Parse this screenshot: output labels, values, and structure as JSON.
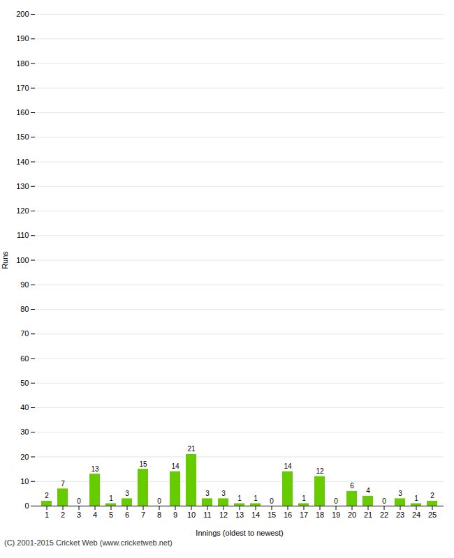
{
  "chart_data": {
    "type": "bar",
    "xlabel": "Innings (oldest to newest)",
    "ylabel": "Runs",
    "caption": "(C) 2001-2015 Cricket Web (www.cricketweb.net)",
    "categories": [
      "1",
      "2",
      "3",
      "4",
      "5",
      "6",
      "7",
      "8",
      "9",
      "10",
      "11",
      "12",
      "13",
      "14",
      "15",
      "16",
      "17",
      "18",
      "19",
      "20",
      "21",
      "22",
      "23",
      "24",
      "25"
    ],
    "values": [
      2,
      7,
      0,
      13,
      1,
      3,
      15,
      0,
      14,
      21,
      3,
      3,
      1,
      1,
      0,
      14,
      1,
      12,
      0,
      6,
      4,
      0,
      3,
      1,
      2
    ],
    "color": "#66cc00",
    "ylim": [
      0,
      200
    ],
    "yticks": [
      0,
      10,
      20,
      30,
      40,
      50,
      60,
      70,
      80,
      90,
      100,
      110,
      120,
      130,
      140,
      150,
      160,
      170,
      180,
      190,
      200
    ],
    "grid": true,
    "data_labels": true
  }
}
